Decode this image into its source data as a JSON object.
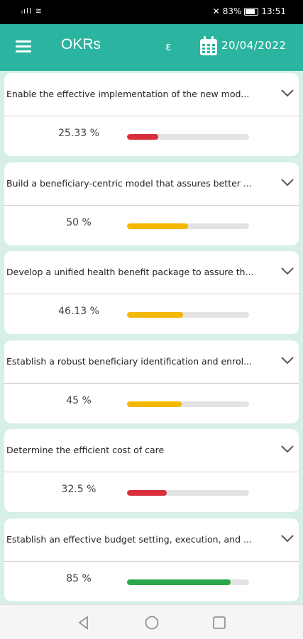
{
  "status_bar": {
    "signal": "ᵢıll ≋",
    "mute_icon": "🔕",
    "battery_percent": "83%",
    "time": "13:51"
  },
  "app_bar": {
    "title": "OKRs",
    "lang_toggle": "ε",
    "date": "20/04/2022"
  },
  "okrs": [
    {
      "title": "Enable the effective implementation of the new mod...",
      "percent_label": "25.33 %",
      "progress": 0.2533,
      "color": "#d92f3c"
    },
    {
      "title": "Build a beneficiary-centric model that assures better ...",
      "percent_label": "50 %",
      "progress": 0.5,
      "color": "#f5b800"
    },
    {
      "title": "Develop a unified health benefit package to assure th...",
      "percent_label": "46.13 %",
      "progress": 0.4613,
      "color": "#f5b800"
    },
    {
      "title": "Establish a robust beneficiary identification and enrol...",
      "percent_label": "45 %",
      "progress": 0.45,
      "color": "#f5b800"
    },
    {
      "title": "Determine the efficient cost of care",
      "percent_label": "32.5 %",
      "progress": 0.325,
      "color": "#d92f3c"
    },
    {
      "title": "Establish an effective budget setting, execution, and ...",
      "percent_label": "85 %",
      "progress": 0.85,
      "color": "#2aa74a"
    }
  ],
  "nav": {
    "back_icon": "back-icon",
    "home_icon": "home-icon",
    "recents_icon": "recents-icon"
  }
}
